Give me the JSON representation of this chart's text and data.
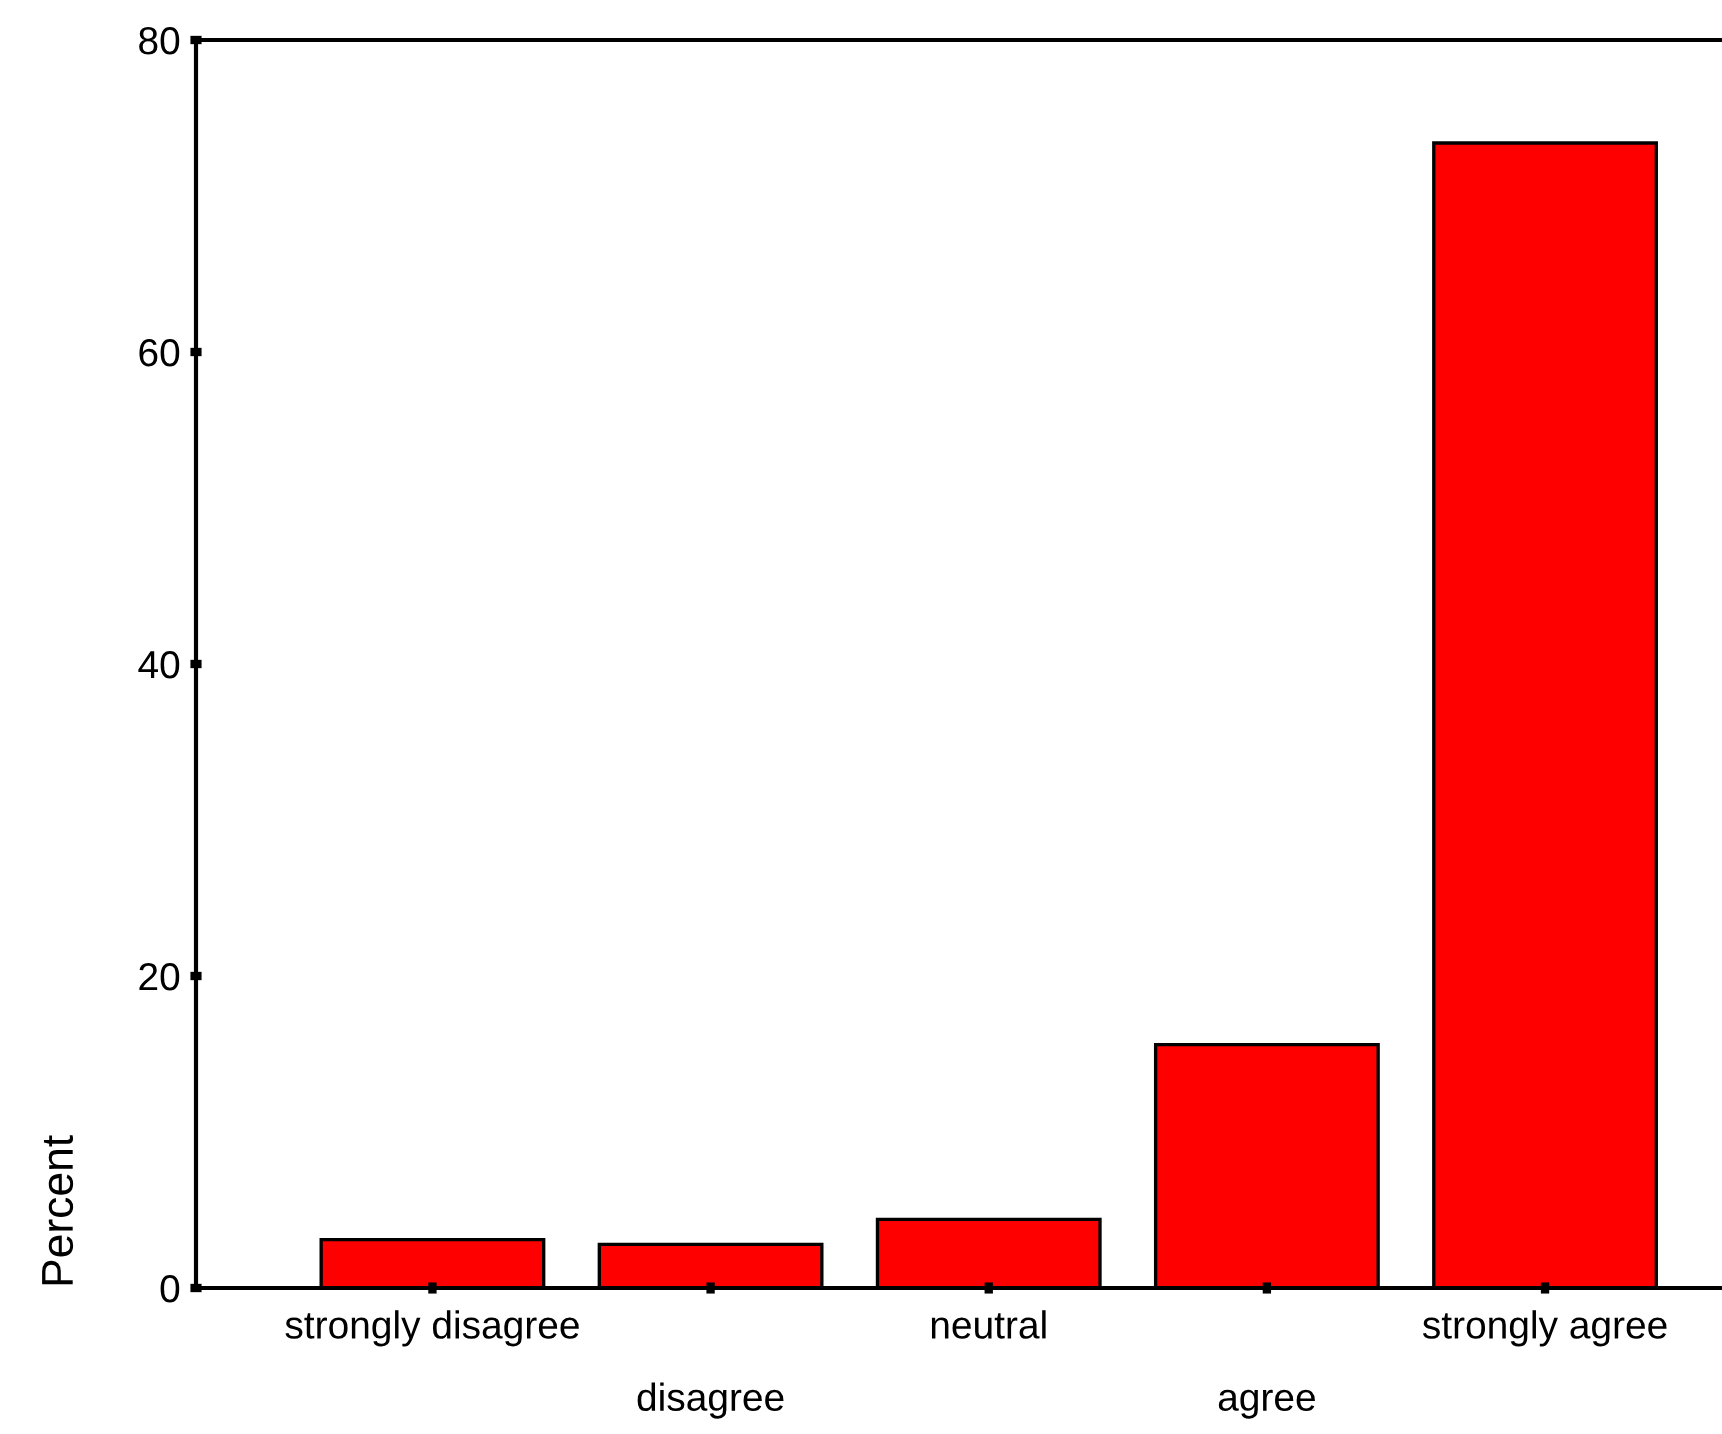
{
  "chart_data": {
    "type": "bar",
    "ylabel": "Percent",
    "categories": [
      "strongly disagree",
      "disagree",
      "neutral",
      "agree",
      "strongly agree"
    ],
    "values": [
      3.1,
      2.8,
      4.4,
      15.6,
      73.4
    ],
    "color": "#ff0000",
    "ylim": [
      0,
      80
    ],
    "yticks": [
      0,
      20,
      40,
      60,
      80
    ],
    "grid": false
  }
}
